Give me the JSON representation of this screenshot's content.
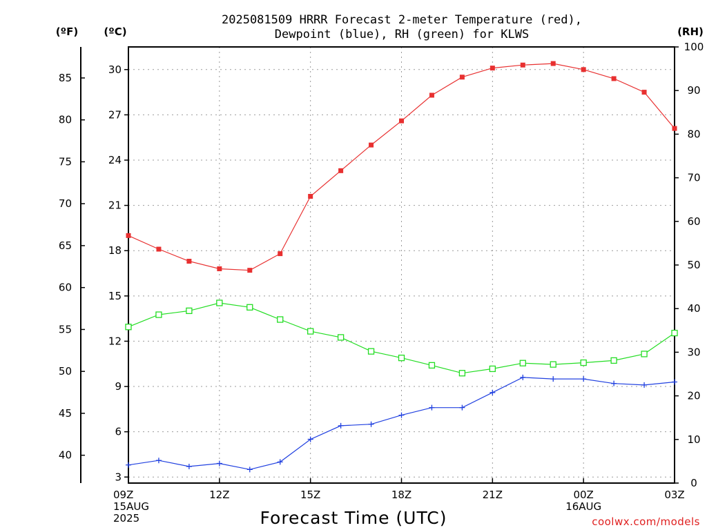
{
  "chart_data": {
    "type": "line",
    "title": [
      "2025081509 HRRR Forecast 2-meter Temperature (red),",
      "Dewpoint (blue), RH (green) for KLWS"
    ],
    "xlabel": "Forecast Time (UTC)",
    "credit": "coolwx.com/models",
    "units": {
      "left_outer": "(ºF)",
      "left_inner": "(ºC)",
      "right": "(RH)"
    },
    "x": [
      "09Z",
      "10Z",
      "11Z",
      "12Z",
      "13Z",
      "14Z",
      "15Z",
      "16Z",
      "17Z",
      "18Z",
      "19Z",
      "20Z",
      "21Z",
      "22Z",
      "23Z",
      "00Z",
      "01Z",
      "02Z",
      "03Z"
    ],
    "x_tick_labels": [
      {
        "index": 0,
        "lines": [
          "09Z",
          "15AUG",
          "2025"
        ]
      },
      {
        "index": 3,
        "lines": [
          "12Z"
        ]
      },
      {
        "index": 6,
        "lines": [
          "15Z"
        ]
      },
      {
        "index": 9,
        "lines": [
          "18Z"
        ]
      },
      {
        "index": 12,
        "lines": [
          "21Z"
        ]
      },
      {
        "index": 15,
        "lines": [
          "00Z",
          "16AUG"
        ]
      },
      {
        "index": 18,
        "lines": [
          "03Z"
        ]
      }
    ],
    "celsius_axis": {
      "ticks": [
        "30",
        "27",
        "24",
        "21",
        "18",
        "15",
        "12",
        "9",
        "6",
        "3"
      ],
      "range": [
        2.6,
        31.5
      ]
    },
    "fahrenheit_axis": {
      "ticks": [
        "85",
        "80",
        "75",
        "70",
        "65",
        "60",
        "55",
        "50",
        "45",
        "40"
      ]
    },
    "rh_axis": {
      "ticks": [
        "100",
        "90",
        "80",
        "70",
        "60",
        "50",
        "40",
        "30",
        "20",
        "10",
        "0"
      ],
      "range": [
        0,
        100
      ]
    },
    "grid": true,
    "series": [
      {
        "axis": "celsius",
        "color": "#e83030",
        "marker": "filled-square",
        "values": [
          19.0,
          18.1,
          17.3,
          16.8,
          16.7,
          17.8,
          21.6,
          23.3,
          25.0,
          26.6,
          28.3,
          29.5,
          30.1,
          30.3,
          30.4,
          30.0,
          29.4,
          28.5,
          26.1
        ]
      },
      {
        "axis": "celsius",
        "color": "#2040e0",
        "marker": "plus",
        "values": [
          3.8,
          4.1,
          3.7,
          3.9,
          3.5,
          4.0,
          5.5,
          6.4,
          6.5,
          7.1,
          7.6,
          7.6,
          8.6,
          9.6,
          9.5,
          9.5,
          9.2,
          9.1,
          9.3
        ]
      },
      {
        "axis": "rh",
        "color": "#22dd22",
        "marker": "open-square",
        "values": [
          35.8,
          38.6,
          39.5,
          41.3,
          40.3,
          37.5,
          34.8,
          33.4,
          30.2,
          28.7,
          27.0,
          25.2,
          26.2,
          27.5,
          27.2,
          27.6,
          28.1,
          29.6,
          34.4
        ]
      }
    ]
  }
}
